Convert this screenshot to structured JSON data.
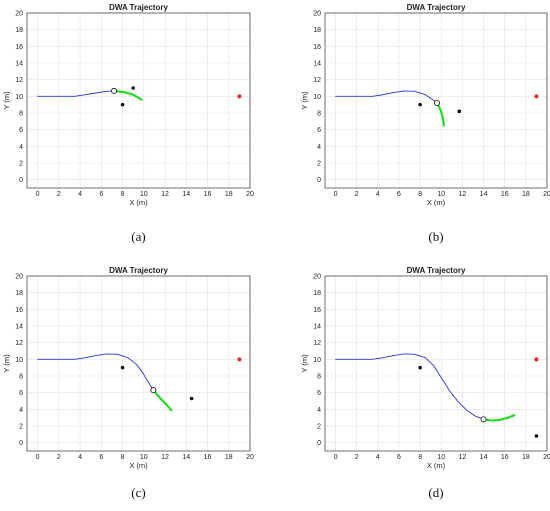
{
  "chart_data": [
    {
      "type": "line",
      "title": "DWA Trajectory",
      "xlabel": "X (m)",
      "ylabel": "Y (m)",
      "xlim": [
        -1,
        20
      ],
      "ylim": [
        -1,
        20
      ],
      "xticks": [
        "0",
        "2",
        "4",
        "6",
        "8",
        "10",
        "12",
        "14",
        "16",
        "18",
        "20"
      ],
      "yticks": [
        "0",
        "2",
        "4",
        "6",
        "8",
        "10",
        "12",
        "14",
        "16",
        "18",
        "20"
      ],
      "grid": true,
      "caption": "(a)",
      "series": [
        {
          "role": "trajectory",
          "color": "#2b33d9",
          "x": [
            0,
            3.5,
            4.5,
            5.5,
            6.5,
            7.2
          ],
          "y": [
            10,
            10,
            10.2,
            10.4,
            10.6,
            10.65
          ]
        },
        {
          "role": "predicted",
          "color": "#22dd22",
          "x": [
            7.2,
            8.2,
            9.0,
            9.8
          ],
          "y": [
            10.65,
            10.5,
            10.2,
            9.6
          ]
        }
      ],
      "robot": {
        "x": 7.2,
        "y": 10.65
      },
      "goal": {
        "x": 19,
        "y": 10,
        "color": "#e8262a"
      },
      "obstacles": [
        {
          "x": 8,
          "y": 9
        },
        {
          "x": 9,
          "y": 11
        }
      ]
    },
    {
      "type": "line",
      "title": "DWA Trajectory",
      "xlabel": "X (m)",
      "ylabel": "Y (m)",
      "xlim": [
        -1,
        20
      ],
      "ylim": [
        -1,
        20
      ],
      "xticks": [
        "0",
        "2",
        "4",
        "6",
        "8",
        "10",
        "12",
        "14",
        "16",
        "18",
        "20"
      ],
      "yticks": [
        "0",
        "2",
        "4",
        "6",
        "8",
        "10",
        "12",
        "14",
        "16",
        "18",
        "20"
      ],
      "grid": true,
      "caption": "(b)",
      "series": [
        {
          "role": "trajectory",
          "color": "#2b33d9",
          "x": [
            0,
            3.5,
            4.5,
            5.5,
            6.5,
            7.5,
            8.5,
            9.2,
            9.6
          ],
          "y": [
            10,
            10,
            10.2,
            10.45,
            10.65,
            10.6,
            10.2,
            9.6,
            9.2
          ]
        },
        {
          "role": "predicted",
          "color": "#22dd22",
          "x": [
            9.6,
            9.95,
            10.15,
            10.25
          ],
          "y": [
            9.2,
            8.3,
            7.4,
            6.5
          ]
        }
      ],
      "robot": {
        "x": 9.6,
        "y": 9.2
      },
      "goal": {
        "x": 19,
        "y": 10,
        "color": "#e8262a"
      },
      "obstacles": [
        {
          "x": 8,
          "y": 9
        },
        {
          "x": 11.7,
          "y": 8.2
        }
      ]
    },
    {
      "type": "line",
      "title": "DWA Trajectory",
      "xlabel": "X (m)",
      "ylabel": "Y (m)",
      "xlim": [
        -1,
        20
      ],
      "ylim": [
        -1,
        20
      ],
      "xticks": [
        "0",
        "2",
        "4",
        "6",
        "8",
        "10",
        "12",
        "14",
        "16",
        "18",
        "20"
      ],
      "yticks": [
        "0",
        "2",
        "4",
        "6",
        "8",
        "10",
        "12",
        "14",
        "16",
        "18",
        "20"
      ],
      "grid": true,
      "caption": "(c)",
      "series": [
        {
          "role": "trajectory",
          "color": "#2b33d9",
          "x": [
            0,
            3.5,
            4.5,
            5.5,
            6.5,
            7.5,
            8.5,
            9.3,
            9.9,
            10.4,
            10.9
          ],
          "y": [
            10,
            10,
            10.2,
            10.45,
            10.65,
            10.6,
            10.2,
            9.4,
            8.4,
            7.3,
            6.3
          ]
        },
        {
          "role": "predicted",
          "color": "#22dd22",
          "x": [
            10.9,
            11.5,
            12.1,
            12.6
          ],
          "y": [
            6.3,
            5.4,
            4.6,
            3.9
          ]
        }
      ],
      "robot": {
        "x": 10.9,
        "y": 6.3
      },
      "goal": {
        "x": 19,
        "y": 10,
        "color": "#e8262a"
      },
      "obstacles": [
        {
          "x": 8,
          "y": 9
        },
        {
          "x": 14.5,
          "y": 5.3
        }
      ]
    },
    {
      "type": "line",
      "title": "DWA Trajectory",
      "xlabel": "X (m)",
      "ylabel": "Y (m)",
      "xlim": [
        -1,
        20
      ],
      "ylim": [
        -1,
        20
      ],
      "xticks": [
        "0",
        "2",
        "4",
        "6",
        "8",
        "10",
        "12",
        "14",
        "16",
        "18",
        "20"
      ],
      "yticks": [
        "0",
        "2",
        "4",
        "6",
        "8",
        "10",
        "12",
        "14",
        "16",
        "18",
        "20"
      ],
      "grid": true,
      "caption": "(d)",
      "series": [
        {
          "role": "trajectory",
          "color": "#2b33d9",
          "x": [
            0,
            3.5,
            4.5,
            5.5,
            6.5,
            7.5,
            8.5,
            9.3,
            10.0,
            10.8,
            11.6,
            12.4,
            13.2,
            14.0
          ],
          "y": [
            10,
            10,
            10.2,
            10.45,
            10.65,
            10.6,
            10.2,
            9.2,
            7.8,
            6.2,
            4.9,
            3.9,
            3.2,
            2.8
          ]
        },
        {
          "role": "predicted",
          "color": "#22dd22",
          "x": [
            14.0,
            14.8,
            15.6,
            16.3,
            16.9
          ],
          "y": [
            2.8,
            2.65,
            2.75,
            3.0,
            3.3
          ]
        }
      ],
      "robot": {
        "x": 14.0,
        "y": 2.8
      },
      "goal": {
        "x": 19,
        "y": 10,
        "color": "#e8262a"
      },
      "obstacles": [
        {
          "x": 8,
          "y": 9
        },
        {
          "x": 19,
          "y": 0.8
        }
      ]
    }
  ]
}
